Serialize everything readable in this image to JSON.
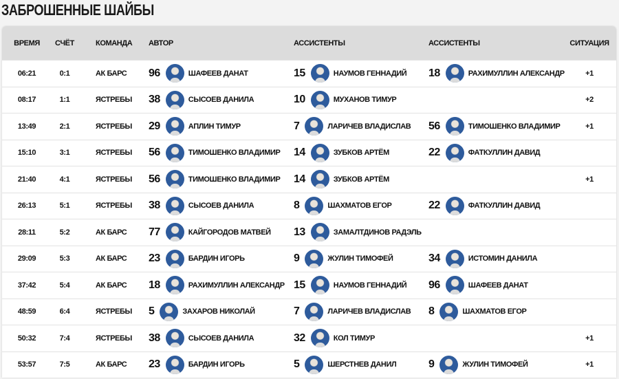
{
  "title": "ЗАБРОШЕННЫЕ ШАЙБЫ",
  "headers": {
    "time": "ВРЕМЯ",
    "score": "СЧЁТ",
    "team": "КОМАНДА",
    "author": "АВТОР",
    "assists1": "АССИСТЕНТЫ",
    "assists2": "АССИСТЕНТЫ",
    "situation": "СИТУАЦИЯ"
  },
  "rows": [
    {
      "time": "06:21",
      "score": "0:1",
      "team": "АК БАРС",
      "author": {
        "num": "96",
        "name": "ШАФЕЕВ ДАНАТ"
      },
      "a1": {
        "num": "15",
        "name": "НАУМОВ ГЕННАДИЙ"
      },
      "a2": {
        "num": "18",
        "name": "РАХИМУЛЛИН АЛЕКСАНДР"
      },
      "sit": "+1"
    },
    {
      "time": "08:17",
      "score": "1:1",
      "team": "ЯСТРЕБЫ",
      "author": {
        "num": "38",
        "name": "СЫСОЕВ ДАНИЛА"
      },
      "a1": {
        "num": "10",
        "name": "МУХАНОВ ТИМУР"
      },
      "a2": null,
      "sit": "+2"
    },
    {
      "time": "13:49",
      "score": "2:1",
      "team": "ЯСТРЕБЫ",
      "author": {
        "num": "29",
        "name": "АПЛИН ТИМУР"
      },
      "a1": {
        "num": "7",
        "name": "ЛАРИЧЕВ ВЛАДИСЛАВ"
      },
      "a2": {
        "num": "56",
        "name": "ТИМОШЕНКО ВЛАДИМИР"
      },
      "sit": "+1"
    },
    {
      "time": "15:10",
      "score": "3:1",
      "team": "ЯСТРЕБЫ",
      "author": {
        "num": "56",
        "name": "ТИМОШЕНКО ВЛАДИМИР"
      },
      "a1": {
        "num": "14",
        "name": "ЗУБКОВ АРТЁМ"
      },
      "a2": {
        "num": "22",
        "name": "ФАТКУЛЛИН ДАВИД"
      },
      "sit": ""
    },
    {
      "time": "21:40",
      "score": "4:1",
      "team": "ЯСТРЕБЫ",
      "author": {
        "num": "56",
        "name": "ТИМОШЕНКО ВЛАДИМИР"
      },
      "a1": {
        "num": "14",
        "name": "ЗУБКОВ АРТЁМ"
      },
      "a2": null,
      "sit": "+1"
    },
    {
      "time": "26:13",
      "score": "5:1",
      "team": "ЯСТРЕБЫ",
      "author": {
        "num": "38",
        "name": "СЫСОЕВ ДАНИЛА"
      },
      "a1": {
        "num": "8",
        "name": "ШАХМАТОВ ЕГОР"
      },
      "a2": {
        "num": "22",
        "name": "ФАТКУЛЛИН ДАВИД"
      },
      "sit": ""
    },
    {
      "time": "28:11",
      "score": "5:2",
      "team": "АК БАРС",
      "author": {
        "num": "77",
        "name": "КАЙГОРОДОВ МАТВЕЙ"
      },
      "a1": {
        "num": "13",
        "name": "ЗАМАЛТДИНОВ РАДЭЛЬ"
      },
      "a2": null,
      "sit": ""
    },
    {
      "time": "29:09",
      "score": "5:3",
      "team": "АК БАРС",
      "author": {
        "num": "23",
        "name": "БАРДИН ИГОРЬ"
      },
      "a1": {
        "num": "9",
        "name": "ЖУЛИН ТИМОФЕЙ"
      },
      "a2": {
        "num": "34",
        "name": "ИСТОМИН ДАНИЛА"
      },
      "sit": ""
    },
    {
      "time": "37:42",
      "score": "5:4",
      "team": "АК БАРС",
      "author": {
        "num": "18",
        "name": "РАХИМУЛЛИН АЛЕКСАНДР"
      },
      "a1": {
        "num": "15",
        "name": "НАУМОВ ГЕННАДИЙ"
      },
      "a2": {
        "num": "96",
        "name": "ШАФЕЕВ ДАНАТ"
      },
      "sit": ""
    },
    {
      "time": "48:59",
      "score": "6:4",
      "team": "ЯСТРЕБЫ",
      "author": {
        "num": "5",
        "name": "ЗАХАРОВ НИКОЛАЙ"
      },
      "a1": {
        "num": "7",
        "name": "ЛАРИЧЕВ ВЛАДИСЛАВ"
      },
      "a2": {
        "num": "8",
        "name": "ШАХМАТОВ ЕГОР"
      },
      "sit": ""
    },
    {
      "time": "50:32",
      "score": "7:4",
      "team": "ЯСТРЕБЫ",
      "author": {
        "num": "38",
        "name": "СЫСОЕВ ДАНИЛА"
      },
      "a1": {
        "num": "32",
        "name": "КОЛ ТИМУР"
      },
      "a2": null,
      "sit": "+1"
    },
    {
      "time": "53:57",
      "score": "7:5",
      "team": "АК БАРС",
      "author": {
        "num": "23",
        "name": "БАРДИН ИГОРЬ"
      },
      "a1": {
        "num": "5",
        "name": "ШЕРСТНЕВ ДАНИЛ"
      },
      "a2": {
        "num": "9",
        "name": "ЖУЛИН ТИМОФЕЙ"
      },
      "sit": "+1"
    }
  ]
}
